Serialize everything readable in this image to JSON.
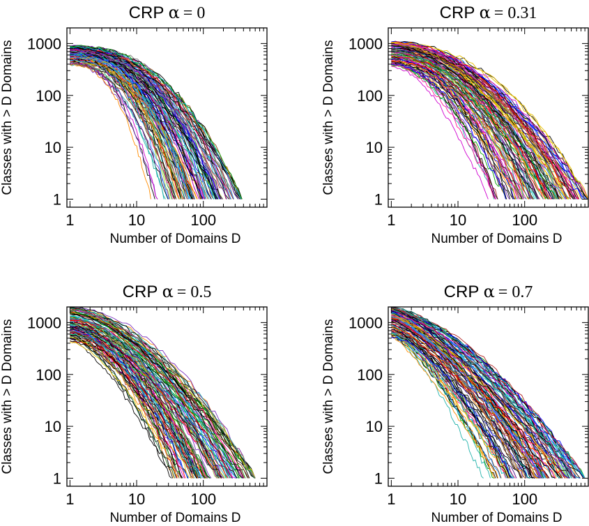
{
  "chart_data": [
    {
      "type": "line",
      "scale": "log-log",
      "title_prefix": "CRP",
      "title_symbol": "α",
      "title_value": "= 0",
      "alpha": 0,
      "xlabel": "Number of Domains D",
      "ylabel": "Classes with > D Domains",
      "xlim": [
        0.9,
        900
      ],
      "ylim": [
        0.7,
        2000
      ],
      "xticks": [
        {
          "value": 1,
          "label": "1"
        },
        {
          "value": 10,
          "label": "10"
        },
        {
          "value": 100,
          "label": "100"
        }
      ],
      "yticks": [
        {
          "value": 1,
          "label": "1"
        },
        {
          "value": 10,
          "label": "10"
        },
        {
          "value": 100,
          "label": "100"
        },
        {
          "value": 1000,
          "label": "1000"
        }
      ],
      "n_series": 120,
      "series_summary": {
        "start_y_range": [
          380,
          900
        ],
        "end_x_range": [
          12,
          380
        ],
        "end_y": 1
      }
    },
    {
      "type": "line",
      "scale": "log-log",
      "title_prefix": "CRP",
      "title_symbol": "α",
      "title_value": "= 0.31",
      "alpha": 0.31,
      "xlabel": "Number of Domains D",
      "ylabel": "Classes with > D Domains",
      "xlim": [
        0.9,
        900
      ],
      "ylim": [
        0.7,
        2000
      ],
      "xticks": [
        {
          "value": 1,
          "label": "1"
        },
        {
          "value": 10,
          "label": "10"
        },
        {
          "value": 100,
          "label": "100"
        }
      ],
      "yticks": [
        {
          "value": 1,
          "label": "1"
        },
        {
          "value": 10,
          "label": "10"
        },
        {
          "value": 100,
          "label": "100"
        },
        {
          "value": 1000,
          "label": "1000"
        }
      ],
      "n_series": 120,
      "series_summary": {
        "start_y_range": [
          350,
          1100
        ],
        "end_x_range": [
          20,
          900
        ],
        "end_y": 1
      }
    },
    {
      "type": "line",
      "scale": "log-log",
      "title_prefix": "CRP",
      "title_symbol": "α",
      "title_value": "= 0.5",
      "alpha": 0.5,
      "xlabel": "Number of Domains D",
      "ylabel": "Classes with > D Domains",
      "xlim": [
        0.9,
        900
      ],
      "ylim": [
        0.7,
        2000
      ],
      "xticks": [
        {
          "value": 1,
          "label": "1"
        },
        {
          "value": 10,
          "label": "10"
        },
        {
          "value": 100,
          "label": "100"
        }
      ],
      "yticks": [
        {
          "value": 1,
          "label": "1"
        },
        {
          "value": 10,
          "label": "10"
        },
        {
          "value": 100,
          "label": "100"
        },
        {
          "value": 1000,
          "label": "1000"
        }
      ],
      "n_series": 120,
      "series_summary": {
        "start_y_range": [
          400,
          2000
        ],
        "end_x_range": [
          18,
          600
        ],
        "end_y": 1
      }
    },
    {
      "type": "line",
      "scale": "log-log",
      "title_prefix": "CRP",
      "title_symbol": "α",
      "title_value": "= 0.7",
      "alpha": 0.7,
      "xlabel": "Number of Domains D",
      "ylabel": "Classes with > D Domains",
      "xlim": [
        0.9,
        900
      ],
      "ylim": [
        0.7,
        2000
      ],
      "xticks": [
        {
          "value": 1,
          "label": "1"
        },
        {
          "value": 10,
          "label": "10"
        },
        {
          "value": 100,
          "label": "100"
        }
      ],
      "yticks": [
        {
          "value": 1,
          "label": "1"
        },
        {
          "value": 10,
          "label": "10"
        },
        {
          "value": 100,
          "label": "100"
        },
        {
          "value": 1000,
          "label": "1000"
        }
      ],
      "n_series": 120,
      "series_summary": {
        "start_y_range": [
          500,
          2000
        ],
        "end_x_range": [
          15,
          800
        ],
        "end_y": 1
      }
    }
  ],
  "colors": {
    "palette": [
      "#000000",
      "#ff0000",
      "#00a000",
      "#0000ff",
      "#00c8c8",
      "#d000d0",
      "#e8c000",
      "#ff8c00",
      "#8b4513",
      "#7b2fbe",
      "#2e8b57",
      "#ff1493",
      "#1e90ff",
      "#808080",
      "#b22222",
      "#20b2aa",
      "#9acd32",
      "#4b0082"
    ],
    "axes": "#000000"
  }
}
